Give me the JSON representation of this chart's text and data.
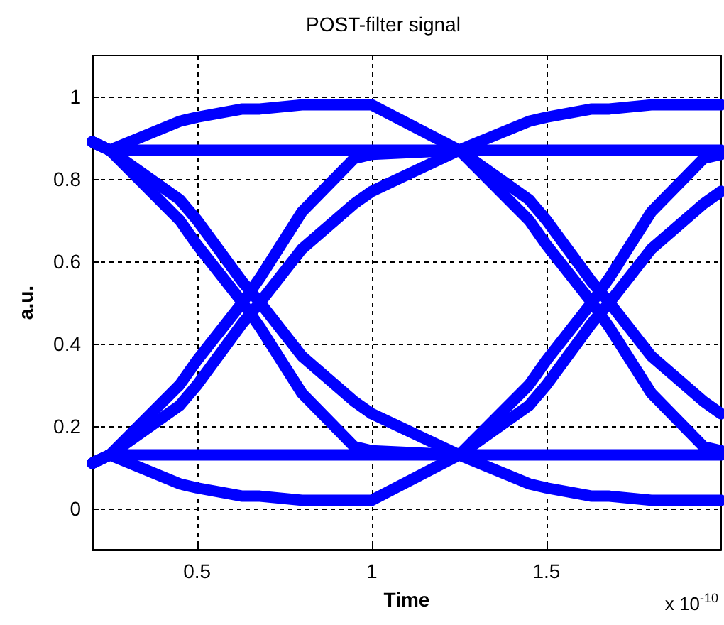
{
  "chart_data": {
    "type": "line",
    "title": "POST-filter signal",
    "xlabel": "Time",
    "ylabel": "a.u.",
    "annotations": [
      "x 10$^{-10}$"
    ],
    "x": [
      0.2,
      0.25,
      0.45,
      0.5,
      0.63,
      0.68,
      0.8,
      0.95,
      1.0,
      1.25,
      1.45,
      1.5,
      1.63,
      1.68,
      1.8,
      1.95,
      2.0
    ],
    "series": [
      {
        "color": "#0000ff",
        "values": [
          0.89,
          0.87,
          0.87,
          0.87,
          0.87,
          0.87,
          0.87,
          0.87,
          0.87,
          0.87,
          0.87,
          0.87,
          0.87,
          0.87,
          0.87,
          0.87,
          0.87
        ]
      },
      {
        "color": "#0000ff",
        "values": [
          0.89,
          0.87,
          0.94,
          0.95,
          0.97,
          0.97,
          0.98,
          0.98,
          0.98,
          0.87,
          0.94,
          0.95,
          0.97,
          0.97,
          0.98,
          0.98,
          0.98
        ]
      },
      {
        "color": "#0000ff",
        "values": [
          0.11,
          0.13,
          0.3,
          0.36,
          0.5,
          0.56,
          0.72,
          0.85,
          0.86,
          0.87,
          0.7,
          0.64,
          0.5,
          0.44,
          0.28,
          0.15,
          0.14
        ]
      },
      {
        "color": "#0000ff",
        "values": [
          0.11,
          0.13,
          0.25,
          0.3,
          0.45,
          0.5,
          0.63,
          0.74,
          0.77,
          0.87,
          0.75,
          0.7,
          0.55,
          0.5,
          0.37,
          0.26,
          0.23
        ]
      },
      {
        "color": "#0000ff",
        "values": [
          0.11,
          0.13,
          0.13,
          0.13,
          0.13,
          0.13,
          0.13,
          0.13,
          0.13,
          0.13,
          0.13,
          0.13,
          0.13,
          0.13,
          0.13,
          0.13,
          0.13
        ]
      },
      {
        "color": "#0000ff",
        "values": [
          0.11,
          0.13,
          0.06,
          0.05,
          0.03,
          0.03,
          0.02,
          0.02,
          0.02,
          0.13,
          0.06,
          0.05,
          0.03,
          0.03,
          0.02,
          0.02,
          0.02
        ]
      },
      {
        "color": "#0000ff",
        "values": [
          0.89,
          0.87,
          0.7,
          0.64,
          0.5,
          0.44,
          0.28,
          0.15,
          0.14,
          0.13,
          0.3,
          0.36,
          0.5,
          0.56,
          0.72,
          0.85,
          0.86
        ]
      },
      {
        "color": "#0000ff",
        "values": [
          0.89,
          0.87,
          0.75,
          0.7,
          0.55,
          0.5,
          0.37,
          0.26,
          0.23,
          0.13,
          0.25,
          0.3,
          0.45,
          0.5,
          0.63,
          0.74,
          0.77
        ]
      }
    ],
    "xlim": [
      0.2,
      2.0
    ],
    "xticks": [
      0.5,
      1,
      1.5
    ],
    "ylim": [
      -0.1,
      1.1
    ],
    "yticks": [
      0,
      0.2,
      0.4,
      0.6,
      0.8,
      1
    ],
    "grid": true,
    "line_style": "solid"
  }
}
